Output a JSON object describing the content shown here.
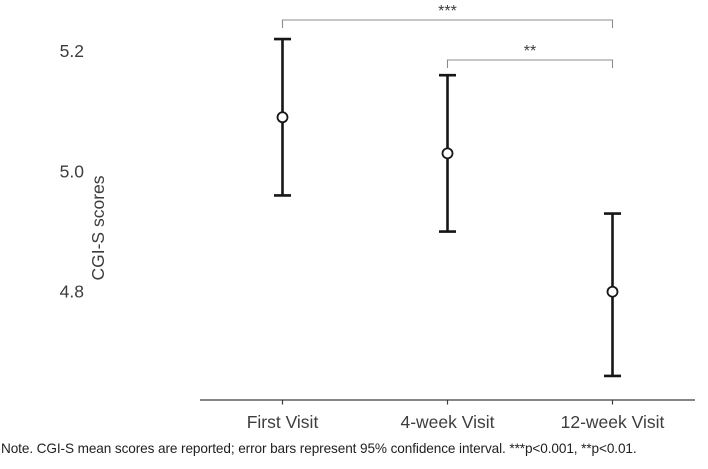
{
  "figure": {
    "note": "Note. CGI-S mean scores are reported; error bars represent 95% confidence interval. ***p<0.001, **p<0.01."
  },
  "chart_data": {
    "type": "scatter",
    "title": "",
    "xlabel": "",
    "ylabel": "CGI-S scores",
    "categories": [
      "First Visit",
      "4-week Visit",
      "12-week Visit"
    ],
    "series": [
      {
        "name": "CGI-S mean scores (95% CI)",
        "means": [
          5.09,
          5.03,
          4.8
        ],
        "ci_low": [
          4.96,
          4.9,
          4.66
        ],
        "ci_high": [
          5.22,
          5.16,
          4.93
        ]
      }
    ],
    "yticks": [
      4.8,
      5.0,
      5.2
    ],
    "ylim": [
      4.62,
      5.26
    ],
    "grid": false,
    "legend": "none",
    "error_bars": "95% confidence interval",
    "significance": [
      {
        "from": 0,
        "to": 2,
        "label": "***"
      },
      {
        "from": 1,
        "to": 2,
        "label": "**"
      }
    ],
    "colors": {
      "point_fill": "#ffffff",
      "errorbar": "#161616",
      "axis": "#3d3d3d",
      "text": "#3d3d3d",
      "bracket": "#8c8c8c"
    }
  }
}
